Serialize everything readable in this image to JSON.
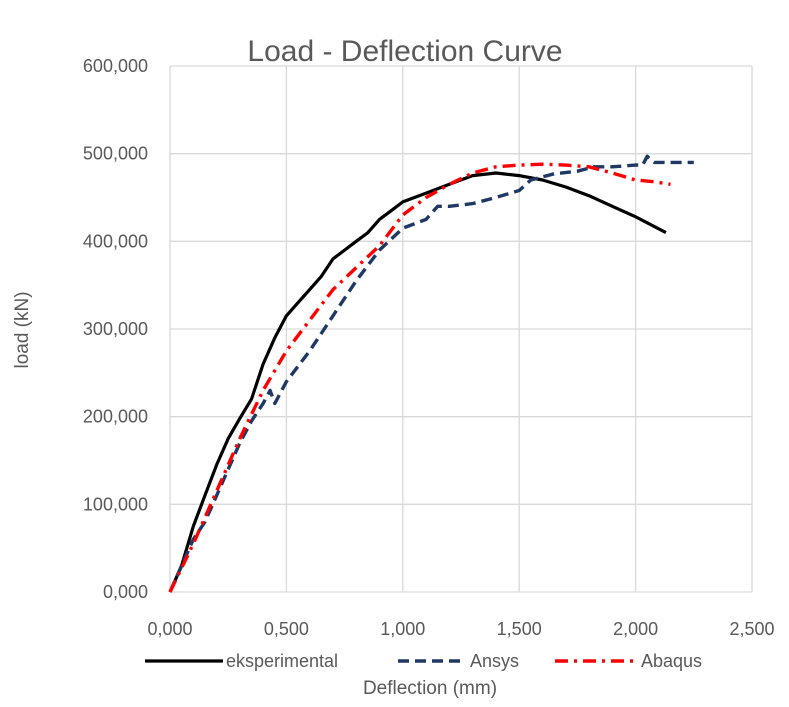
{
  "chart_data": {
    "type": "line",
    "title": "Load - Deflection Curve",
    "xlabel": "Deflection (mm)",
    "ylabel": "load (kN)",
    "xlim": [
      0,
      2.5
    ],
    "ylim": [
      0,
      600000
    ],
    "x_ticks": [
      "0,000",
      "0,500",
      "1,000",
      "1,500",
      "2,000",
      "2,500"
    ],
    "x_tick_values": [
      0,
      0.5,
      1.0,
      1.5,
      2.0,
      2.5
    ],
    "y_ticks": [
      "0,000",
      "100,000",
      "200,000",
      "300,000",
      "400,000",
      "500,000",
      "600,000"
    ],
    "y_tick_values": [
      0,
      100000,
      200000,
      300000,
      400000,
      500000,
      600000
    ],
    "grid": true,
    "legend_position": "bottom",
    "series": [
      {
        "name": "eksperimental",
        "color": "#000000",
        "dash": "solid",
        "points": [
          [
            0,
            0
          ],
          [
            0.05,
            30000
          ],
          [
            0.1,
            75000
          ],
          [
            0.15,
            110000
          ],
          [
            0.2,
            145000
          ],
          [
            0.25,
            175000
          ],
          [
            0.3,
            198000
          ],
          [
            0.35,
            220000
          ],
          [
            0.4,
            260000
          ],
          [
            0.45,
            290000
          ],
          [
            0.5,
            315000
          ],
          [
            0.55,
            330000
          ],
          [
            0.6,
            345000
          ],
          [
            0.65,
            360000
          ],
          [
            0.7,
            380000
          ],
          [
            0.75,
            390000
          ],
          [
            0.8,
            400000
          ],
          [
            0.85,
            410000
          ],
          [
            0.9,
            425000
          ],
          [
            0.95,
            435000
          ],
          [
            1.0,
            445000
          ],
          [
            1.1,
            455000
          ],
          [
            1.2,
            465000
          ],
          [
            1.3,
            475000
          ],
          [
            1.4,
            478000
          ],
          [
            1.5,
            475000
          ],
          [
            1.6,
            470000
          ],
          [
            1.7,
            462000
          ],
          [
            1.8,
            452000
          ],
          [
            1.9,
            440000
          ],
          [
            2.0,
            428000
          ],
          [
            2.13,
            410000
          ]
        ]
      },
      {
        "name": "Ansys",
        "color": "#1f3864",
        "dash": "dashed",
        "points": [
          [
            0,
            0
          ],
          [
            0.05,
            30000
          ],
          [
            0.1,
            60000
          ],
          [
            0.15,
            80000
          ],
          [
            0.2,
            110000
          ],
          [
            0.25,
            140000
          ],
          [
            0.3,
            170000
          ],
          [
            0.35,
            195000
          ],
          [
            0.4,
            215000
          ],
          [
            0.43,
            230000
          ],
          [
            0.45,
            215000
          ],
          [
            0.5,
            240000
          ],
          [
            0.6,
            275000
          ],
          [
            0.7,
            315000
          ],
          [
            0.8,
            355000
          ],
          [
            0.9,
            390000
          ],
          [
            1.0,
            415000
          ],
          [
            1.1,
            425000
          ],
          [
            1.15,
            440000
          ],
          [
            1.2,
            440000
          ],
          [
            1.3,
            443000
          ],
          [
            1.4,
            450000
          ],
          [
            1.5,
            458000
          ],
          [
            1.55,
            470000
          ],
          [
            1.65,
            477000
          ],
          [
            1.75,
            480000
          ],
          [
            1.82,
            485000
          ],
          [
            1.9,
            485000
          ],
          [
            2.0,
            487000
          ],
          [
            2.03,
            487000
          ],
          [
            2.05,
            497000
          ],
          [
            2.08,
            490000
          ],
          [
            2.25,
            490000
          ]
        ]
      },
      {
        "name": "Abaqus",
        "color": "#ff0000",
        "dash": "dash-dot",
        "points": [
          [
            0,
            0
          ],
          [
            0.1,
            55000
          ],
          [
            0.2,
            115000
          ],
          [
            0.3,
            175000
          ],
          [
            0.4,
            230000
          ],
          [
            0.5,
            275000
          ],
          [
            0.6,
            310000
          ],
          [
            0.7,
            345000
          ],
          [
            0.8,
            370000
          ],
          [
            0.9,
            395000
          ],
          [
            1.0,
            430000
          ],
          [
            1.1,
            450000
          ],
          [
            1.2,
            465000
          ],
          [
            1.3,
            478000
          ],
          [
            1.4,
            485000
          ],
          [
            1.5,
            487000
          ],
          [
            1.6,
            488000
          ],
          [
            1.7,
            487000
          ],
          [
            1.8,
            485000
          ],
          [
            1.9,
            478000
          ],
          [
            2.0,
            470000
          ],
          [
            2.08,
            468000
          ],
          [
            2.15,
            465000
          ]
        ]
      }
    ]
  }
}
